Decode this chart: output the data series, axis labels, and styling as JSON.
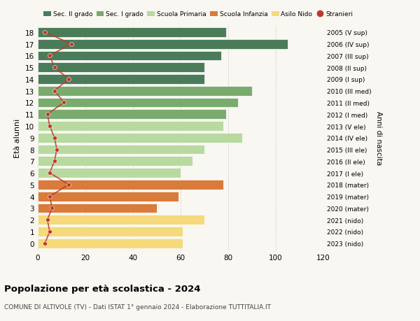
{
  "ages": [
    18,
    17,
    16,
    15,
    14,
    13,
    12,
    11,
    10,
    9,
    8,
    7,
    6,
    5,
    4,
    3,
    2,
    1,
    0
  ],
  "years": [
    "2005 (V sup)",
    "2006 (IV sup)",
    "2007 (III sup)",
    "2008 (II sup)",
    "2009 (I sup)",
    "2010 (III med)",
    "2011 (II med)",
    "2012 (I med)",
    "2013 (V ele)",
    "2014 (IV ele)",
    "2015 (III ele)",
    "2016 (II ele)",
    "2017 (I ele)",
    "2018 (mater)",
    "2019 (mater)",
    "2020 (mater)",
    "2021 (nido)",
    "2022 (nido)",
    "2023 (nido)"
  ],
  "bar_values": [
    79,
    105,
    77,
    70,
    70,
    90,
    84,
    79,
    78,
    86,
    70,
    65,
    60,
    78,
    59,
    50,
    70,
    61,
    61
  ],
  "bar_colors": [
    "#4a7c59",
    "#4a7c59",
    "#4a7c59",
    "#4a7c59",
    "#4a7c59",
    "#7aab6e",
    "#7aab6e",
    "#7aab6e",
    "#b8d9a0",
    "#b8d9a0",
    "#b8d9a0",
    "#b8d9a0",
    "#b8d9a0",
    "#d97b3a",
    "#d97b3a",
    "#d97b3a",
    "#f5d97a",
    "#f5d97a",
    "#f5d97a"
  ],
  "stranieri_values": [
    3,
    14,
    5,
    7,
    13,
    7,
    11,
    4,
    5,
    7,
    8,
    7,
    5,
    13,
    5,
    6,
    4,
    5,
    3
  ],
  "xlim": [
    0,
    120
  ],
  "ylabel": "Età alunni",
  "right_ylabel": "Anni di nascita",
  "title": "Popolazione per età scolastica - 2024",
  "subtitle": "COMUNE DI ALTIVOLE (TV) - Dati ISTAT 1° gennaio 2024 - Elaborazione TUTTITALIA.IT",
  "legend_labels": [
    "Sec. II grado",
    "Sec. I grado",
    "Scuola Primaria",
    "Scuola Infanzia",
    "Asilo Nido",
    "Stranieri"
  ],
  "legend_colors": [
    "#4a7c59",
    "#7aab6e",
    "#b8d9a0",
    "#d97b3a",
    "#f5d97a",
    "#c0392b"
  ],
  "stranieri_color": "#c0392b",
  "bg_color": "#f9f7f2",
  "bar_height": 0.82,
  "xticks": [
    0,
    20,
    40,
    60,
    80,
    100,
    120
  ]
}
